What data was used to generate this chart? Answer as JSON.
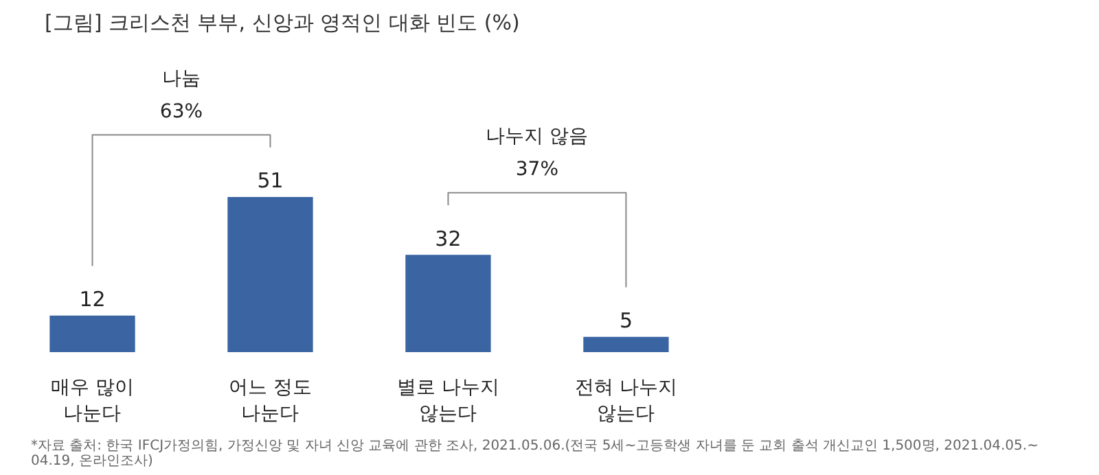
{
  "chart_data": {
    "type": "bar",
    "title": "[그림] 크리스천 부부, 신앙과 영적인 대화 빈도 (%)",
    "categories": [
      "매우 많이\n나눈다",
      "어느 정도\n나눈다",
      "별로 나누지\n않는다",
      "전혀 나누지\n않는다"
    ],
    "values": [
      12,
      51,
      32,
      5
    ],
    "color": "#3a64a2",
    "data_labels": true,
    "grid": false,
    "annotations": [
      "나눔\n63%",
      "나누지 않음\n37%",
      "*자료 출처: 한국 IFCJ가정의힘, 가정신앙 및 자녀 신앙 교육에 관한 조사, 2021.05.06.(전국 5세~고등학생 자녀를 둔 교회 출석 개신교인 1,500명, 2021.04.05.~\n04.19, 온라인조사)"
    ]
  }
}
